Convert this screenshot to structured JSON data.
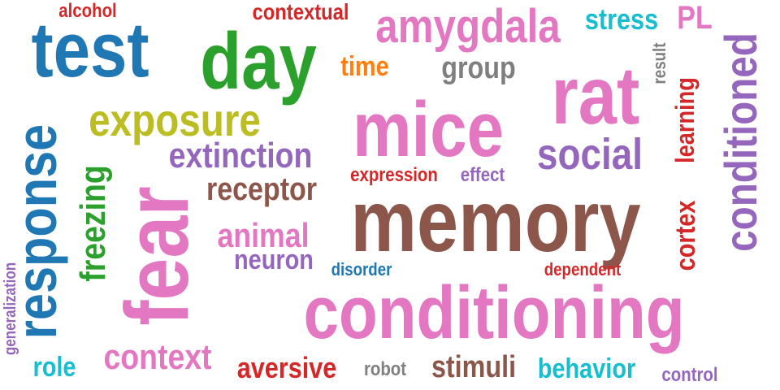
{
  "palette": {
    "blue": "#1f77b4",
    "green": "#2ca02c",
    "pink": "#e377c2",
    "brown": "#8c564b",
    "purple": "#9467bd",
    "olive": "#bcbd22",
    "red": "#d62728",
    "orange": "#ff7f0e",
    "cyan": "#17becf",
    "gray": "#7f7f7f"
  },
  "words": [
    {
      "id": "memory",
      "text": "memory",
      "color": "brown"
    },
    {
      "id": "conditioning",
      "text": "conditioning",
      "color": "pink"
    },
    {
      "id": "mice",
      "text": "mice",
      "color": "pink"
    },
    {
      "id": "rat",
      "text": "rat",
      "color": "pink"
    },
    {
      "id": "fear",
      "text": "fear",
      "color": "pink"
    },
    {
      "id": "day",
      "text": "day",
      "color": "green"
    },
    {
      "id": "test",
      "text": "test",
      "color": "blue"
    },
    {
      "id": "response",
      "text": "response",
      "color": "blue"
    },
    {
      "id": "exposure",
      "text": "exposure",
      "color": "olive"
    },
    {
      "id": "amygdala",
      "text": "amygdala",
      "color": "pink"
    },
    {
      "id": "conditioned",
      "text": "conditioned",
      "color": "purple"
    },
    {
      "id": "social",
      "text": "social",
      "color": "purple"
    },
    {
      "id": "extinction",
      "text": "extinction",
      "color": "purple"
    },
    {
      "id": "context",
      "text": "context",
      "color": "pink"
    },
    {
      "id": "receptor",
      "text": "receptor",
      "color": "brown"
    },
    {
      "id": "animal",
      "text": "animal",
      "color": "pink"
    },
    {
      "id": "freezing",
      "text": "freezing",
      "color": "green"
    },
    {
      "id": "stimuli",
      "text": "stimuli",
      "color": "brown"
    },
    {
      "id": "aversive",
      "text": "aversive",
      "color": "red"
    },
    {
      "id": "behavior",
      "text": "behavior",
      "color": "cyan"
    },
    {
      "id": "neuron",
      "text": "neuron",
      "color": "purple"
    },
    {
      "id": "stress",
      "text": "stress",
      "color": "cyan"
    },
    {
      "id": "PL",
      "text": "PL",
      "color": "pink"
    },
    {
      "id": "contextual",
      "text": "contextual",
      "color": "red"
    },
    {
      "id": "group",
      "text": "group",
      "color": "gray"
    },
    {
      "id": "time",
      "text": "time",
      "color": "orange"
    },
    {
      "id": "learning",
      "text": "learning",
      "color": "red"
    },
    {
      "id": "cortex",
      "text": "cortex",
      "color": "red"
    },
    {
      "id": "role",
      "text": "role",
      "color": "cyan"
    },
    {
      "id": "alcohol",
      "text": "alcohol",
      "color": "red"
    },
    {
      "id": "expression",
      "text": "expression",
      "color": "red"
    },
    {
      "id": "effect",
      "text": "effect",
      "color": "purple"
    },
    {
      "id": "disorder",
      "text": "disorder",
      "color": "blue"
    },
    {
      "id": "dependent",
      "text": "dependent",
      "color": "red"
    },
    {
      "id": "robot",
      "text": "robot",
      "color": "gray"
    },
    {
      "id": "control",
      "text": "control",
      "color": "purple"
    },
    {
      "id": "result",
      "text": "result",
      "color": "gray"
    },
    {
      "id": "generalization",
      "text": "generalization",
      "color": "purple"
    }
  ]
}
